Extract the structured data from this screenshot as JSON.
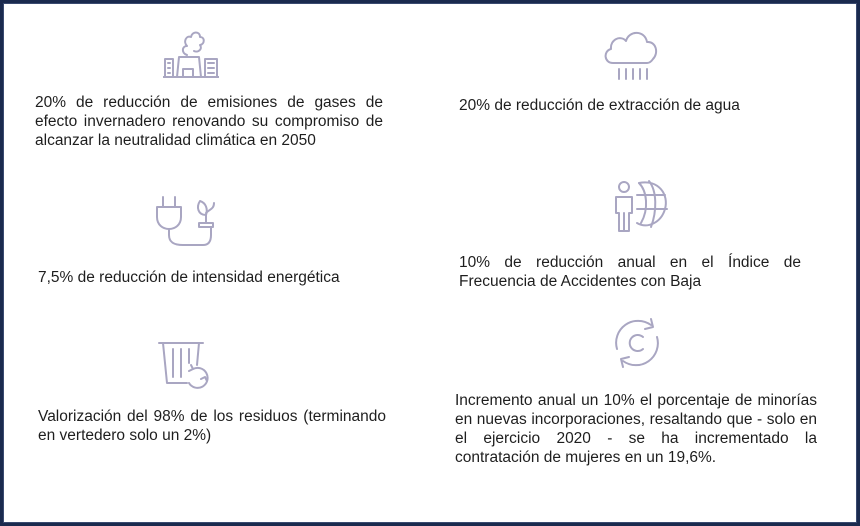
{
  "colors": {
    "icon": "#a9a6c2",
    "text": "#1e1e1e",
    "border": "#1b2a4e"
  },
  "items": [
    {
      "icon": "factory-emissions-icon",
      "text": "20% de reducción de emisiones de gases de efecto invernadero renovando su compromiso de alcanzar la neutralidad climática en 2050"
    },
    {
      "icon": "rain-cloud-icon",
      "text": "20% de reducción de extracción de agua"
    },
    {
      "icon": "eco-plug-icon",
      "text": "7,5% de reducción de intensidad energética"
    },
    {
      "icon": "person-globe-icon",
      "text": "10% de reducción anual en el Índice de Frecuencia de Accidentes con Baja"
    },
    {
      "icon": "recycle-bin-icon",
      "text": "Valorización del 98% de los residuos (terminando en vertedero solo un 2%)"
    },
    {
      "icon": "circular-arrows-icon",
      "text": "Incremento anual un 10% el porcentaje de minorías en nuevas incorporaciones, resaltando que - solo en el ejercicio 2020 - se ha incrementado la contratación de mujeres en un 19,6%."
    }
  ]
}
